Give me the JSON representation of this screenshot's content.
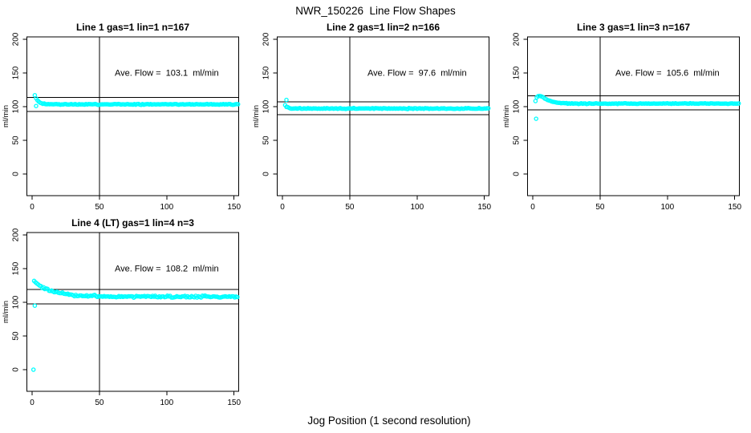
{
  "page_title": "NWR_150226  Line Flow Shapes",
  "x_axis_label": "Jog Position (1 second resolution)",
  "colors": {
    "marker": "#00FFFF",
    "axis": "#000000",
    "background": "#FFFFFF"
  },
  "chart_data": [
    {
      "type": "scatter",
      "title": "Line 1 gas=1 lin=1 n=167",
      "annotation": "Ave. Flow =  103.1  ml/min",
      "ave_flow_ml_min": 103.1,
      "n": 167,
      "ylabel": "ml/min",
      "xticks": [
        0,
        50,
        100,
        150
      ],
      "yticks": [
        0,
        50,
        100,
        150,
        200
      ],
      "xlim": [
        -6,
        156
      ],
      "ylim": [
        -32,
        204
      ],
      "ref_hlines": [
        113.4,
        92.8
      ],
      "ref_vline": 50,
      "legend": "none",
      "grid": false,
      "series": {
        "shape": "exp",
        "x_start": 2,
        "x_end": 153,
        "start_y": 117,
        "settle_y": 103.4,
        "tau": 2.5,
        "noise": 0.6,
        "seed": 3
      },
      "outliers": [
        [
          3,
          101
        ]
      ]
    },
    {
      "type": "scatter",
      "title": "Line 2 gas=1 lin=2 n=166",
      "annotation": "Ave. Flow =  97.6  ml/min",
      "ave_flow_ml_min": 97.6,
      "n": 166,
      "ylabel": "ml/min",
      "xticks": [
        0,
        50,
        100,
        150
      ],
      "yticks": [
        0,
        50,
        100,
        150,
        200
      ],
      "xlim": [
        -6,
        156
      ],
      "ylim": [
        -32,
        204
      ],
      "ref_hlines": [
        107.4,
        87.8
      ],
      "ref_vline": 50,
      "legend": "none",
      "grid": false,
      "series": {
        "shape": "exp",
        "x_start": 2,
        "x_end": 153,
        "start_y": 102,
        "settle_y": 97.2,
        "tau": 1.8,
        "noise": 0.6,
        "seed": 7
      },
      "outliers": [
        [
          3,
          110
        ]
      ]
    },
    {
      "type": "scatter",
      "title": "Line 3 gas=1 lin=3 n=167",
      "annotation": "Ave. Flow =  105.6  ml/min",
      "ave_flow_ml_min": 105.6,
      "n": 167,
      "ylabel": "ml/min",
      "xticks": [
        0,
        50,
        100,
        150
      ],
      "yticks": [
        0,
        50,
        100,
        150,
        200
      ],
      "xlim": [
        -6,
        156
      ],
      "ylim": [
        -32,
        204
      ],
      "ref_hlines": [
        116.2,
        95.0
      ],
      "ref_vline": 50,
      "legend": "none",
      "grid": false,
      "series": {
        "shape": "bump",
        "x_start": 2,
        "x_end": 153,
        "settle_y": 104.6,
        "amp": 11.5,
        "t0": 1.5,
        "t_peak": 3.5,
        "noise": 0.55,
        "seed": 13
      },
      "outliers": [
        [
          2.5,
          82
        ]
      ]
    },
    {
      "type": "scatter",
      "title": "Line 4 (LT) gas=1 lin=4 n=3",
      "annotation": "Ave. Flow =  108.2  ml/min",
      "ave_flow_ml_min": 108.2,
      "n": 3,
      "ylabel": "ml/min",
      "xticks": [
        0,
        50,
        100,
        150
      ],
      "yticks": [
        0,
        50,
        100,
        150,
        200
      ],
      "xlim": [
        -6,
        156
      ],
      "ylim": [
        -32,
        204
      ],
      "ref_hlines": [
        119.0,
        97.4
      ],
      "ref_vline": 50,
      "legend": "none",
      "grid": false,
      "series": {
        "shape": "exp",
        "x_start": 1.5,
        "x_end": 153,
        "start_y": 131,
        "settle_y": 108.3,
        "tau": 13,
        "noise": 1.4,
        "seed": 21
      },
      "outliers": [
        [
          2,
          95
        ],
        [
          1,
          0
        ]
      ]
    }
  ]
}
